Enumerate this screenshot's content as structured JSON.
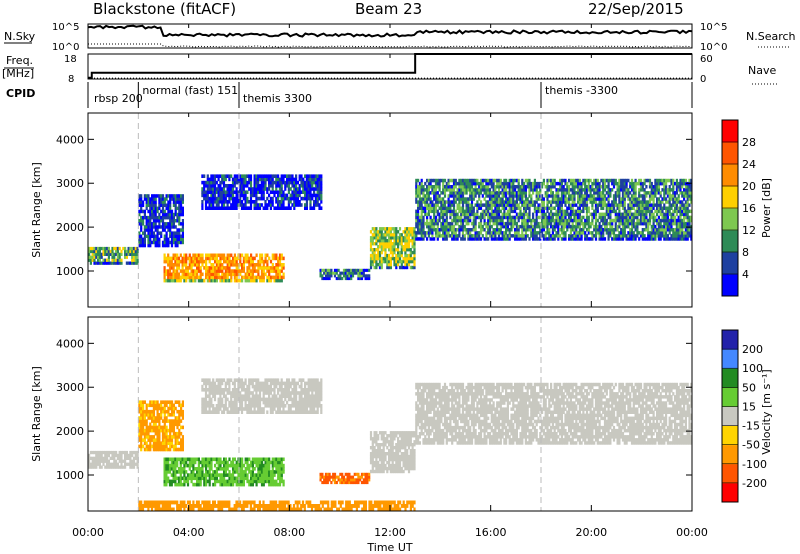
{
  "header": {
    "station": "Blackstone (fitACF)",
    "beam": "Beam 23",
    "date": "22/Sep/2015"
  },
  "top_panels": {
    "nsky_label": "N.Sky",
    "nsearch_label": "N.Search",
    "nsky_ticks": [
      "10^5",
      "10^0"
    ],
    "nsearch_ticks": [
      "10^5",
      "10^0"
    ],
    "freq_label_1": "Freq.",
    "freq_label_2": "[MHz]",
    "freq_ticks": [
      "18",
      "8"
    ],
    "nave_label": "Nave",
    "nave_ticks": [
      "60",
      "0"
    ],
    "cpid_label": "CPID",
    "cpid_segments": [
      {
        "label": "rbsp 200",
        "start_hour": 0.0
      },
      {
        "label": "normal (fast) 151",
        "start_hour": 2.0
      },
      {
        "label": "themis 3300",
        "start_hour": 6.0
      },
      {
        "label": "themis -3300",
        "start_hour": 18.0
      }
    ]
  },
  "power_panel": {
    "ylabel": "Slant Range [km]",
    "colorbar_label": "Power [dB]",
    "colorbar_ticks": [
      "28",
      "24",
      "20",
      "16",
      "12",
      "8",
      "4"
    ],
    "colorbar_colors": [
      "#ff0000",
      "#ff5500",
      "#ff8c00",
      "#ffd000",
      "#7ec850",
      "#2e8b57",
      "#1e40a0",
      "#0000ff"
    ]
  },
  "velocity_panel": {
    "ylabel": "Slant Range [km]",
    "colorbar_label": "Velocity [m s⁻¹]",
    "colorbar_ticks": [
      "200",
      "100",
      "50",
      "15",
      "-15",
      "-50",
      "-100",
      "-200"
    ],
    "colorbar_colors": [
      "#2222aa",
      "#4488ff",
      "#228b22",
      "#66cc33",
      "#c8c8c0",
      "#ffd400",
      "#ff9900",
      "#ff5500",
      "#ff0000"
    ]
  },
  "axes": {
    "xlabel": "Time UT",
    "x_ticks": [
      "00:00",
      "04:00",
      "08:00",
      "12:00",
      "16:00",
      "20:00",
      "00:00"
    ],
    "y_ticks": [
      "1000",
      "2000",
      "3000",
      "4000"
    ]
  },
  "chart_data": {
    "type": "heatmap",
    "title": "Blackstone (fitACF)",
    "xlabel": "Time UT",
    "ylabel": "Slant Range [km]",
    "xlim_hours": [
      0,
      24
    ],
    "ylim_km": [
      180,
      4600
    ],
    "panels": [
      {
        "name": "power",
        "scale_db": [
          0,
          30
        ],
        "regions": [
          {
            "t0": 0.0,
            "t1": 2.0,
            "r0": 1150,
            "r1": 1550,
            "value": 14
          },
          {
            "t0": 2.0,
            "t1": 3.8,
            "r0": 1550,
            "r1": 2750,
            "value": 8
          },
          {
            "t0": 3.0,
            "t1": 7.8,
            "r0": 750,
            "r1": 1400,
            "value": 22
          },
          {
            "t0": 4.5,
            "t1": 9.3,
            "r0": 2400,
            "r1": 3200,
            "value": 8
          },
          {
            "t0": 9.2,
            "t1": 11.2,
            "r0": 800,
            "r1": 1050,
            "value": 12
          },
          {
            "t0": 11.2,
            "t1": 13.0,
            "r0": 1050,
            "r1": 2000,
            "value": 16
          },
          {
            "t0": 13.0,
            "t1": 24.0,
            "r0": 1700,
            "r1": 3100,
            "value": 12
          }
        ]
      },
      {
        "name": "velocity",
        "scale_ms": [
          -200,
          200
        ],
        "regions": [
          {
            "t0": 0.0,
            "t1": 2.0,
            "r0": 1150,
            "r1": 1550,
            "value": 0
          },
          {
            "t0": 2.0,
            "t1": 3.8,
            "r0": 1550,
            "r1": 2700,
            "value": -40
          },
          {
            "t0": 3.0,
            "t1": 7.8,
            "r0": 750,
            "r1": 1400,
            "value": 40
          },
          {
            "t0": 4.5,
            "t1": 9.3,
            "r0": 2400,
            "r1": 3200,
            "value": 0
          },
          {
            "t0": 9.2,
            "t1": 11.2,
            "r0": 800,
            "r1": 1050,
            "value": -80
          },
          {
            "t0": 11.2,
            "t1": 13.0,
            "r0": 1050,
            "r1": 2000,
            "value": 0
          },
          {
            "t0": 13.0,
            "t1": 24.0,
            "r0": 1700,
            "r1": 3100,
            "value": 0
          },
          {
            "t0": 2.0,
            "t1": 13.0,
            "r0": 180,
            "r1": 420,
            "value": -60
          }
        ]
      }
    ],
    "frequency_mhz": [
      {
        "t0": 0.0,
        "t1": 0.15,
        "value": 8.5
      },
      {
        "t0": 0.15,
        "t1": 13.0,
        "value": 10.5
      },
      {
        "t0": 13.0,
        "t1": 24.0,
        "value": 18
      }
    ],
    "nave": [
      {
        "t0": 0.0,
        "t1": 24.0,
        "value": 2
      }
    ]
  }
}
